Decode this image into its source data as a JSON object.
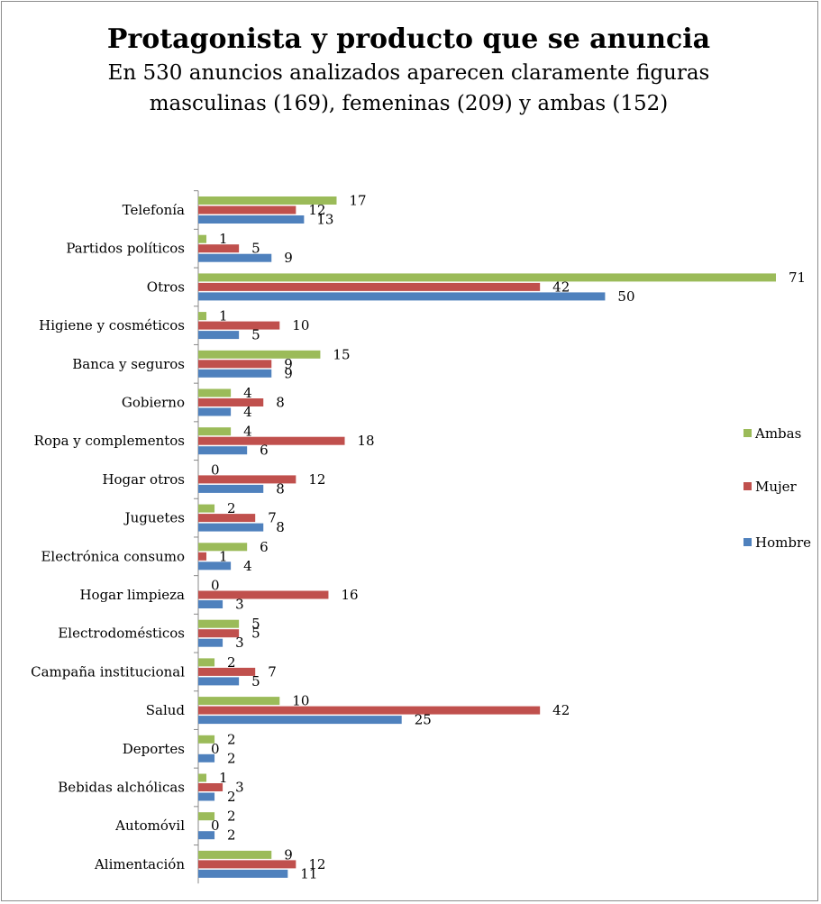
{
  "chart_data": {
    "type": "bar",
    "orientation": "horizontal",
    "title": "Protagonista y producto que se anuncia",
    "subtitle_lines": [
      "En 530 anuncios analizados aparecen claramente figuras",
      "masculinas (169), femeninas (209) y ambas (152)"
    ],
    "categories": [
      "Telefonía",
      "Partidos políticos",
      "Otros",
      "Higiene y cosméticos",
      "Banca y seguros",
      "Gobierno",
      "Ropa y complementos",
      "Hogar otros",
      "Juguetes",
      "Electrónica consumo",
      "Hogar limpieza",
      "Electrodomésticos",
      "Campaña institucional",
      "Salud",
      "Deportes",
      "Bebidas alchólicas",
      "Automóvil",
      "Alimentación"
    ],
    "series": [
      {
        "name": "Ambas",
        "color": "#9bbb59",
        "values": [
          17,
          1,
          71,
          1,
          15,
          4,
          4,
          0,
          2,
          6,
          0,
          5,
          2,
          10,
          2,
          1,
          2,
          9
        ]
      },
      {
        "name": "Mujer",
        "color": "#c0504d",
        "values": [
          12,
          5,
          42,
          10,
          9,
          8,
          18,
          12,
          7,
          1,
          16,
          5,
          7,
          42,
          0,
          3,
          0,
          12
        ]
      },
      {
        "name": "Hombre",
        "color": "#4f81bd",
        "values": [
          13,
          9,
          50,
          5,
          9,
          4,
          6,
          8,
          8,
          4,
          3,
          3,
          5,
          25,
          2,
          2,
          2,
          11
        ]
      }
    ],
    "xlim": [
      0,
      71
    ],
    "legend": {
      "position": "right",
      "order": [
        "Ambas",
        "Mujer",
        "Hombre"
      ]
    },
    "grid": false,
    "data_labels": true
  }
}
